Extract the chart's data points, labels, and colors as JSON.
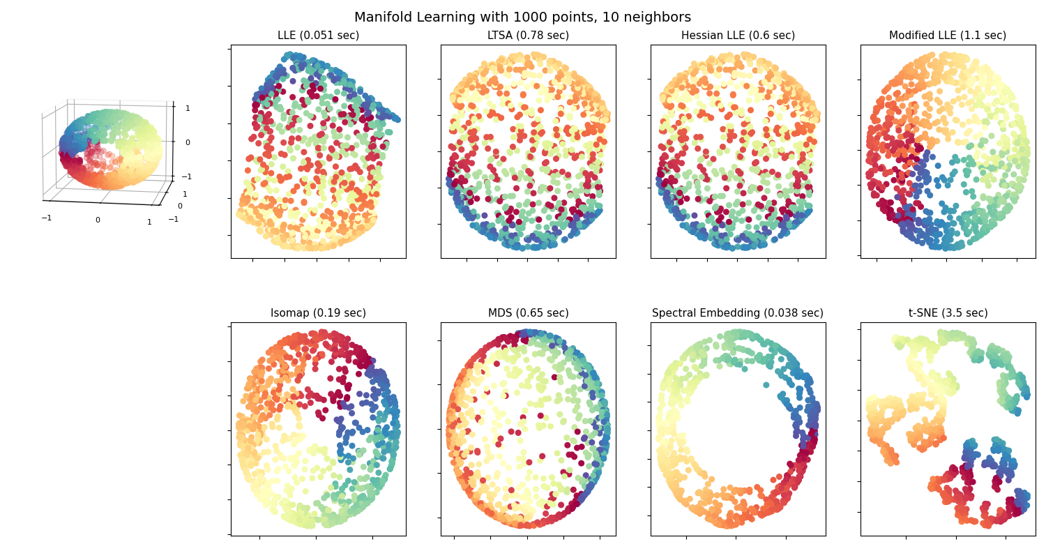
{
  "title": "Manifold Learning with 1000 points, 10 neighbors",
  "n_points": 1000,
  "n_neighbors": 10,
  "random_state": 0,
  "methods": [
    {
      "name": "LLE",
      "time": "0.051 sec",
      "row": 0,
      "col": 1
    },
    {
      "name": "LTSA",
      "time": "0.78 sec",
      "row": 0,
      "col": 2
    },
    {
      "name": "Hessian LLE",
      "time": "0.6 sec",
      "row": 0,
      "col": 3
    },
    {
      "name": "Modified LLE",
      "time": "1.1 sec",
      "row": 0,
      "col": 4
    },
    {
      "name": "Isomap",
      "time": "0.19 sec",
      "row": 1,
      "col": 1
    },
    {
      "name": "MDS",
      "time": "0.65 sec",
      "row": 1,
      "col": 2
    },
    {
      "name": "Spectral Embedding",
      "time": "0.038 sec",
      "row": 1,
      "col": 3
    },
    {
      "name": "t-SNE",
      "time": "3.5 sec",
      "row": 1,
      "col": 4
    }
  ],
  "figsize": [
    15.0,
    8.0
  ],
  "dpi": 100,
  "background_color": "white",
  "point_size": 30,
  "colormap": "Spectral",
  "3d_elev": 10,
  "3d_azim": -80
}
